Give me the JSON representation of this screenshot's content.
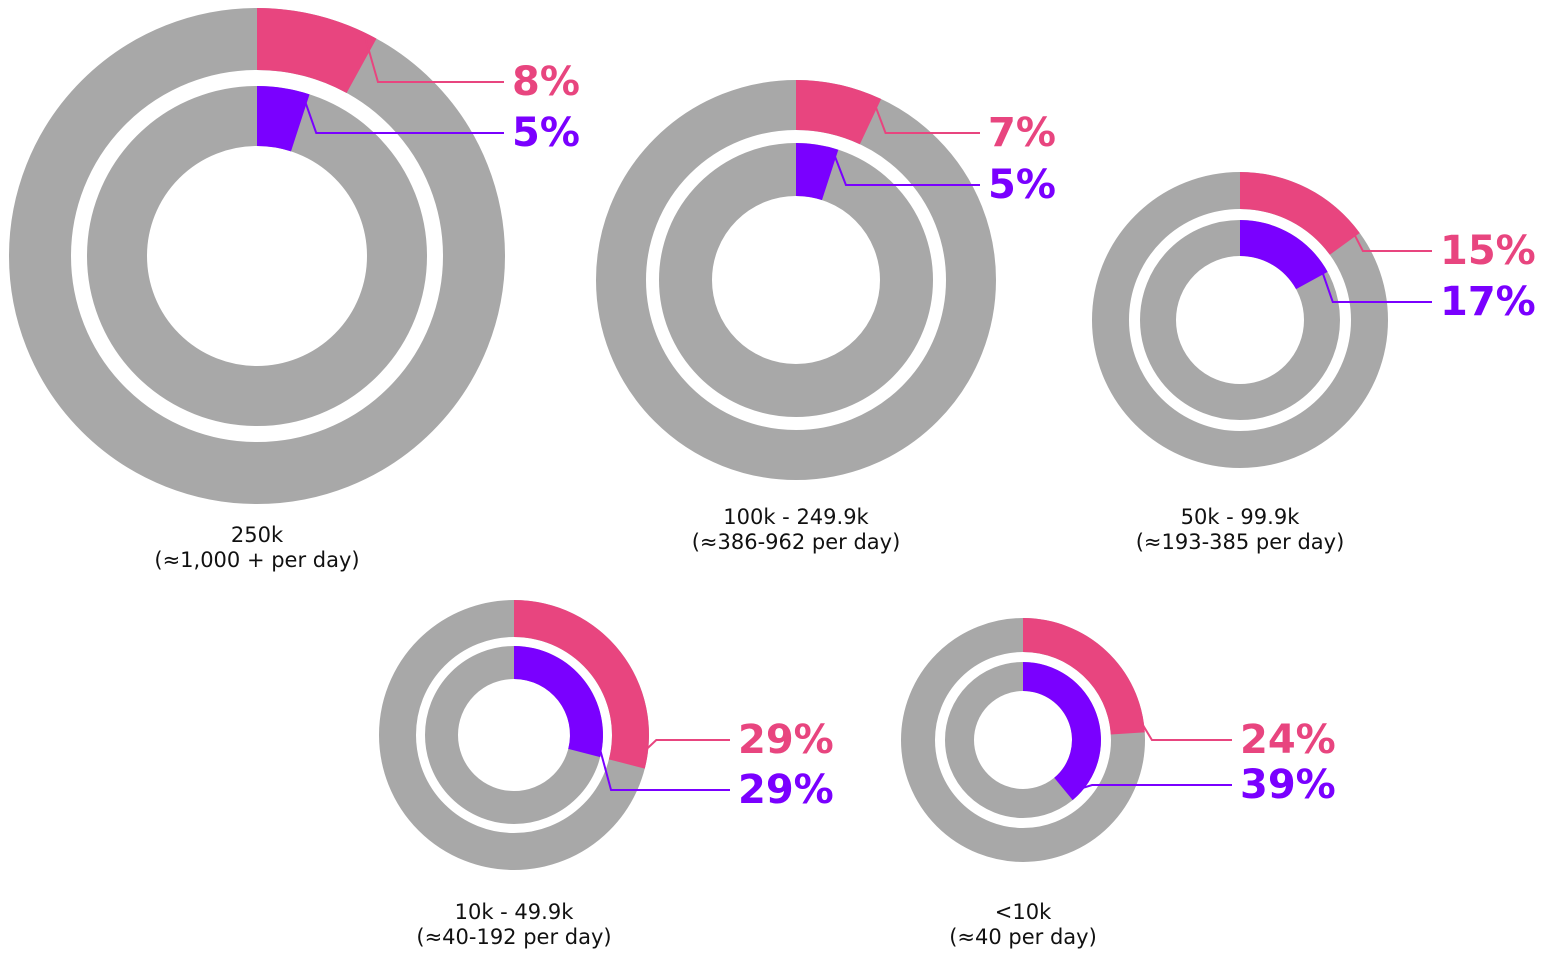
{
  "chart_data": [
    {
      "type": "donut",
      "title": "250k",
      "subtitle": "(≈1,000 + per day)",
      "series": [
        {
          "color": "#e8457f",
          "values": [
            8
          ],
          "value_labels": [
            "8%"
          ]
        },
        {
          "color": "#7a00ff",
          "values": [
            5
          ],
          "value_labels": [
            "5%"
          ]
        }
      ]
    },
    {
      "type": "donut",
      "title": "100k - 249.9k",
      "subtitle": "(≈386-962 per day)",
      "series": [
        {
          "color": "#e8457f",
          "values": [
            7
          ],
          "value_labels": [
            "7%"
          ]
        },
        {
          "color": "#7a00ff",
          "values": [
            5
          ],
          "value_labels": [
            "5%"
          ]
        }
      ]
    },
    {
      "type": "donut",
      "title": "50k - 99.9k",
      "subtitle": "(≈193-385 per day)",
      "series": [
        {
          "color": "#e8457f",
          "values": [
            15
          ],
          "value_labels": [
            "15%"
          ]
        },
        {
          "color": "#7a00ff",
          "values": [
            17
          ],
          "value_labels": [
            "17%"
          ]
        }
      ]
    },
    {
      "type": "donut",
      "title": "10k - 49.9k",
      "subtitle": "(≈40-192 per day)",
      "series": [
        {
          "color": "#e8457f",
          "values": [
            29
          ],
          "value_labels": [
            "29%"
          ]
        },
        {
          "color": "#7a00ff",
          "values": [
            29
          ],
          "value_labels": [
            "29%"
          ]
        }
      ]
    },
    {
      "type": "donut",
      "title": "<10k",
      "subtitle": "(≈40 per day)",
      "series": [
        {
          "color": "#e8457f",
          "values": [
            24
          ],
          "value_labels": [
            "24%"
          ]
        },
        {
          "color": "#7a00ff",
          "values": [
            39
          ],
          "value_labels": [
            "39%"
          ]
        }
      ]
    }
  ]
}
